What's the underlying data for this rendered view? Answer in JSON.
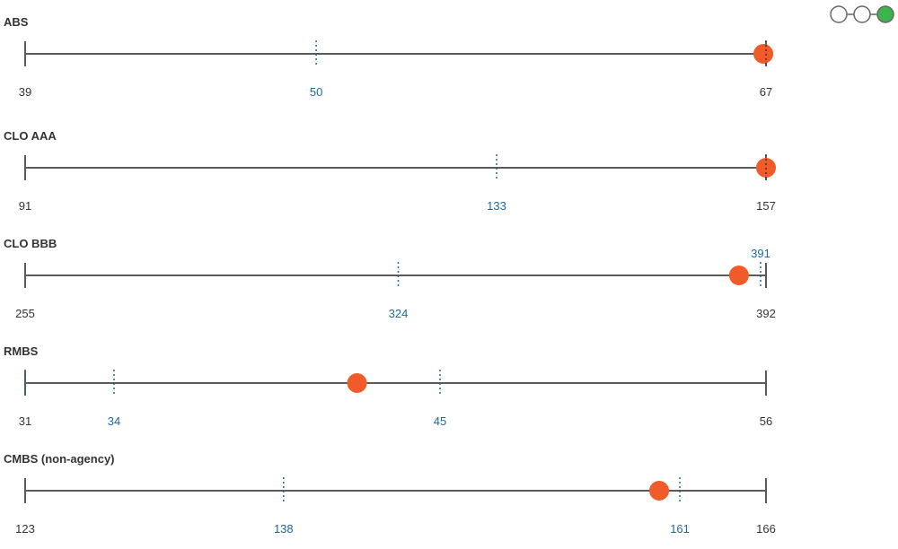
{
  "colors": {
    "track": "#5a5a5a",
    "current_dot": "#f15a29",
    "median_tick": "#1b6a9c",
    "current_tick": "#333333",
    "label_blue": "#1b6a9c",
    "nav_active": "#3bb54a"
  },
  "pager": {
    "pages": 3,
    "active": 3
  },
  "chart_data": {
    "type": "range_dot",
    "rows": [
      {
        "label": "ABS",
        "min": 39,
        "max": 67,
        "current": 66.9,
        "marks": [
          {
            "value": 50,
            "label": "50",
            "color": "blue"
          },
          {
            "value": 67,
            "label": "",
            "color": "dark"
          }
        ]
      },
      {
        "label": "CLO AAA",
        "min": 91,
        "max": 157,
        "current": 157,
        "marks": [
          {
            "value": 133,
            "label": "133",
            "color": "blue"
          },
          {
            "value": 157,
            "label": "",
            "color": "dark"
          }
        ]
      },
      {
        "label": "CLO BBB",
        "min": 255,
        "max": 392,
        "current": 387,
        "marks": [
          {
            "value": 324,
            "label": "324",
            "color": "blue"
          },
          {
            "value": 391,
            "label": "391",
            "color": "blue",
            "label_above": true
          }
        ]
      },
      {
        "label": "RMBS",
        "min": 31,
        "max": 56,
        "current": 42.2,
        "marks": [
          {
            "value": 31,
            "label": "",
            "color": "blue"
          },
          {
            "value": 34,
            "label": "34",
            "color": "blue"
          },
          {
            "value": 45,
            "label": "45",
            "color": "blue"
          }
        ]
      },
      {
        "label": "CMBS (non-agency)",
        "min": 123,
        "max": 166,
        "current": 159.8,
        "marks": [
          {
            "value": 138,
            "label": "138",
            "color": "blue"
          },
          {
            "value": 161,
            "label": "161",
            "color": "blue"
          }
        ]
      }
    ]
  }
}
